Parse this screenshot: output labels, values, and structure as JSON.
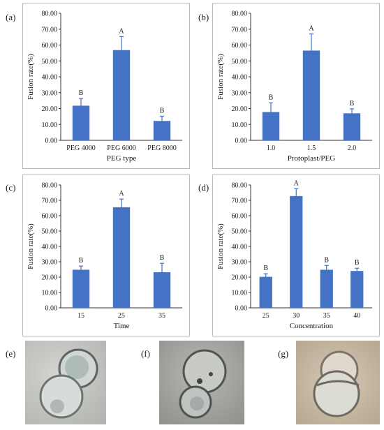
{
  "panels": [
    {
      "label": "(a)"
    },
    {
      "label": "(b)"
    },
    {
      "label": "(c)"
    },
    {
      "label": "(d)"
    },
    {
      "label": "(e)"
    },
    {
      "label": "(f)"
    },
    {
      "label": "(g)"
    }
  ],
  "chart_data": [
    {
      "type": "bar",
      "panel": "(a)",
      "categories": [
        "PEG 4000",
        "PEG 6000",
        "PEG 8000"
      ],
      "values": [
        21.8,
        56.8,
        12.2
      ],
      "errors": [
        4.5,
        8.5,
        3.0
      ],
      "significance": [
        "B",
        "A",
        "B"
      ],
      "xlabel": "PEG type",
      "ylabel": "Fusion rate(%)",
      "ylim": [
        0,
        80
      ],
      "yticks": [
        "0.00",
        "10.00",
        "20.00",
        "30.00",
        "40.00",
        "50.00",
        "60.00",
        "70.00",
        "80.00"
      ],
      "color": "#4472C4"
    },
    {
      "type": "bar",
      "panel": "(b)",
      "categories": [
        "1.0",
        "1.5",
        "2.0"
      ],
      "values": [
        17.8,
        56.5,
        17.0
      ],
      "errors": [
        5.8,
        10.5,
        2.8
      ],
      "significance": [
        "B",
        "A",
        "B"
      ],
      "xlabel": "Protoplast/PEG",
      "ylabel": "Fusion rate(%)",
      "ylim": [
        0,
        80
      ],
      "yticks": [
        "0.00",
        "10.00",
        "20.00",
        "30.00",
        "40.00",
        "50.00",
        "60.00",
        "70.00",
        "80.00"
      ],
      "color": "#4472C4"
    },
    {
      "type": "bar",
      "panel": "(c)",
      "categories": [
        "15",
        "25",
        "35"
      ],
      "values": [
        24.8,
        65.5,
        23.2
      ],
      "errors": [
        2.4,
        5.3,
        5.8
      ],
      "significance": [
        "B",
        "A",
        "B"
      ],
      "xlabel": "Time",
      "ylabel": "Fusion rate(%)",
      "ylim": [
        0,
        80
      ],
      "yticks": [
        "0.00",
        "10.00",
        "20.00",
        "30.00",
        "40.00",
        "50.00",
        "60.00",
        "70.00",
        "80.00"
      ],
      "color": "#4472C4"
    },
    {
      "type": "bar",
      "panel": "(d)",
      "categories": [
        "25",
        "30",
        "35",
        "40"
      ],
      "values": [
        20.2,
        72.8,
        24.8,
        24.0
      ],
      "errors": [
        2.0,
        4.8,
        2.8,
        1.8
      ],
      "significance": [
        "B",
        "A",
        "B",
        "B"
      ],
      "xlabel": "Concentration",
      "ylabel": "Fusion rate(%)",
      "ylim": [
        0,
        80
      ],
      "yticks": [
        "0.00",
        "10.00",
        "20.00",
        "30.00",
        "40.00",
        "50.00",
        "60.00",
        "70.00",
        "80.00"
      ],
      "color": "#4472C4"
    }
  ]
}
